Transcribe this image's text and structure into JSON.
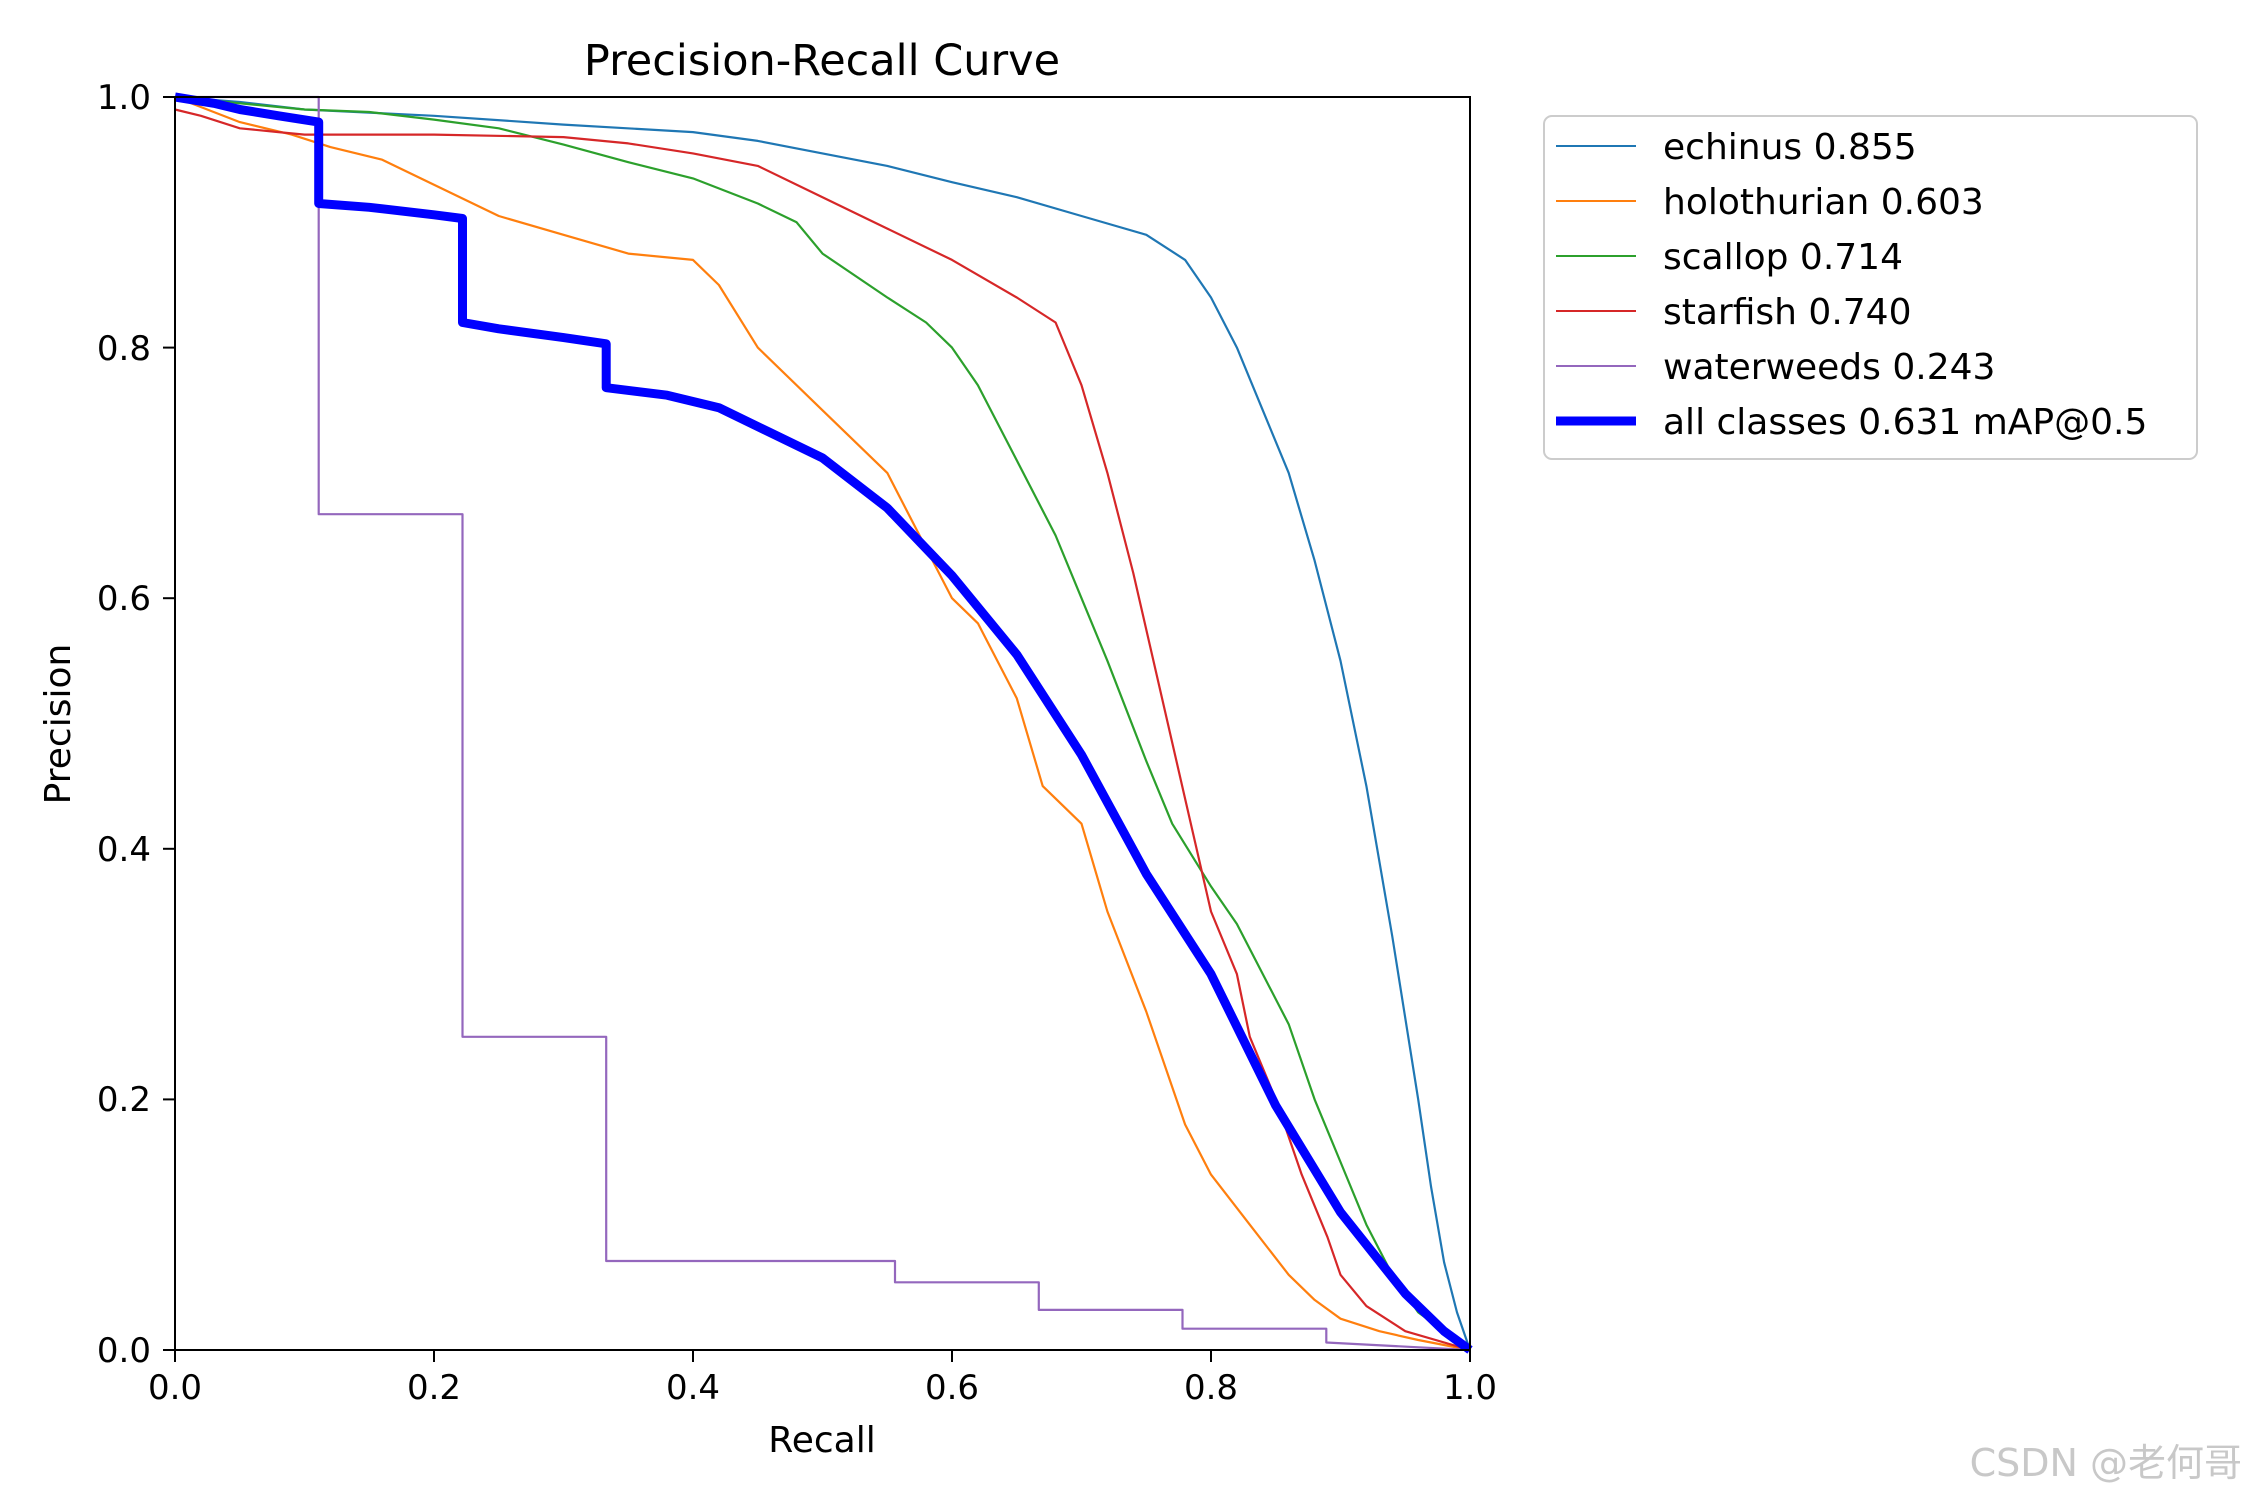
{
  "chart_data": {
    "type": "line",
    "title": "Precision-Recall Curve",
    "xlabel": "Recall",
    "ylabel": "Precision",
    "xlim": [
      0.0,
      1.0
    ],
    "ylim": [
      0.0,
      1.0
    ],
    "xticks": [
      "0.0",
      "0.2",
      "0.4",
      "0.6",
      "0.8",
      "1.0"
    ],
    "yticks": [
      "0.0",
      "0.2",
      "0.4",
      "0.6",
      "0.8",
      "1.0"
    ],
    "grid": false,
    "legend_position": "outside-top-right",
    "series": [
      {
        "name": "echinus",
        "label": "echinus 0.855",
        "color": "#1f77b4",
        "x": [
          0.0,
          0.05,
          0.1,
          0.2,
          0.3,
          0.4,
          0.45,
          0.5,
          0.55,
          0.6,
          0.65,
          0.7,
          0.75,
          0.78,
          0.8,
          0.82,
          0.84,
          0.86,
          0.88,
          0.9,
          0.92,
          0.94,
          0.96,
          0.97,
          0.98,
          0.99,
          1.0
        ],
        "y": [
          1.0,
          0.996,
          0.99,
          0.985,
          0.978,
          0.972,
          0.965,
          0.955,
          0.945,
          0.932,
          0.92,
          0.905,
          0.89,
          0.87,
          0.84,
          0.8,
          0.75,
          0.7,
          0.63,
          0.55,
          0.45,
          0.33,
          0.2,
          0.13,
          0.07,
          0.03,
          0.0
        ]
      },
      {
        "name": "holothurian",
        "label": "holothurian 0.603",
        "color": "#ff7f0e",
        "x": [
          0.0,
          0.05,
          0.09,
          0.12,
          0.16,
          0.2,
          0.25,
          0.3,
          0.35,
          0.4,
          0.42,
          0.45,
          0.5,
          0.55,
          0.58,
          0.6,
          0.62,
          0.65,
          0.67,
          0.7,
          0.72,
          0.75,
          0.78,
          0.8,
          0.83,
          0.86,
          0.88,
          0.9,
          0.93,
          0.96,
          1.0
        ],
        "y": [
          1.0,
          0.98,
          0.97,
          0.96,
          0.95,
          0.93,
          0.905,
          0.89,
          0.875,
          0.87,
          0.85,
          0.8,
          0.75,
          0.7,
          0.64,
          0.6,
          0.58,
          0.52,
          0.45,
          0.42,
          0.35,
          0.27,
          0.18,
          0.14,
          0.1,
          0.06,
          0.04,
          0.025,
          0.015,
          0.008,
          0.0
        ]
      },
      {
        "name": "scallop",
        "label": "scallop 0.714",
        "color": "#2ca02c",
        "x": [
          0.0,
          0.05,
          0.1,
          0.15,
          0.2,
          0.25,
          0.3,
          0.35,
          0.4,
          0.45,
          0.48,
          0.5,
          0.55,
          0.58,
          0.6,
          0.62,
          0.65,
          0.68,
          0.7,
          0.72,
          0.75,
          0.77,
          0.8,
          0.82,
          0.84,
          0.86,
          0.88,
          0.9,
          0.92,
          0.94,
          0.96,
          1.0
        ],
        "y": [
          1.0,
          0.995,
          0.99,
          0.988,
          0.982,
          0.975,
          0.962,
          0.948,
          0.935,
          0.915,
          0.9,
          0.875,
          0.84,
          0.82,
          0.8,
          0.77,
          0.71,
          0.65,
          0.6,
          0.55,
          0.47,
          0.42,
          0.37,
          0.34,
          0.3,
          0.26,
          0.2,
          0.15,
          0.1,
          0.06,
          0.03,
          0.0
        ]
      },
      {
        "name": "starfish",
        "label": "starfish 0.740",
        "color": "#d62728",
        "x": [
          0.0,
          0.02,
          0.05,
          0.08,
          0.1,
          0.2,
          0.3,
          0.35,
          0.4,
          0.45,
          0.5,
          0.55,
          0.6,
          0.65,
          0.68,
          0.7,
          0.72,
          0.74,
          0.76,
          0.78,
          0.8,
          0.82,
          0.83,
          0.85,
          0.87,
          0.89,
          0.9,
          0.92,
          0.95,
          1.0
        ],
        "y": [
          0.99,
          0.985,
          0.975,
          0.972,
          0.97,
          0.97,
          0.968,
          0.963,
          0.955,
          0.945,
          0.92,
          0.895,
          0.87,
          0.84,
          0.82,
          0.77,
          0.7,
          0.62,
          0.53,
          0.44,
          0.35,
          0.3,
          0.25,
          0.2,
          0.14,
          0.09,
          0.06,
          0.035,
          0.015,
          0.0
        ]
      },
      {
        "name": "waterweeds",
        "label": "waterweeds 0.243",
        "color": "#9467bd",
        "x": [
          0.0,
          0.111,
          0.111,
          0.222,
          0.222,
          0.333,
          0.333,
          0.556,
          0.556,
          0.667,
          0.667,
          0.778,
          0.778,
          0.889,
          0.889,
          1.0
        ],
        "y": [
          1.0,
          1.0,
          0.667,
          0.667,
          0.25,
          0.25,
          0.071,
          0.071,
          0.054,
          0.054,
          0.032,
          0.032,
          0.017,
          0.017,
          0.006,
          0.0
        ]
      },
      {
        "name": "all classes",
        "label": "all classes 0.631 mAP@0.5",
        "color": "#0000ff",
        "bold": true,
        "x": [
          0.0,
          0.03,
          0.05,
          0.08,
          0.111,
          0.111,
          0.15,
          0.2,
          0.222,
          0.222,
          0.25,
          0.3,
          0.333,
          0.333,
          0.38,
          0.42,
          0.46,
          0.5,
          0.55,
          0.6,
          0.65,
          0.7,
          0.75,
          0.8,
          0.85,
          0.9,
          0.95,
          0.98,
          1.0
        ],
        "y": [
          1.0,
          0.995,
          0.99,
          0.985,
          0.98,
          0.915,
          0.912,
          0.906,
          0.903,
          0.82,
          0.815,
          0.808,
          0.803,
          0.768,
          0.762,
          0.752,
          0.732,
          0.712,
          0.672,
          0.618,
          0.555,
          0.475,
          0.38,
          0.3,
          0.195,
          0.11,
          0.045,
          0.015,
          0.0
        ]
      }
    ]
  },
  "watermark": "CSDN @老何哥"
}
